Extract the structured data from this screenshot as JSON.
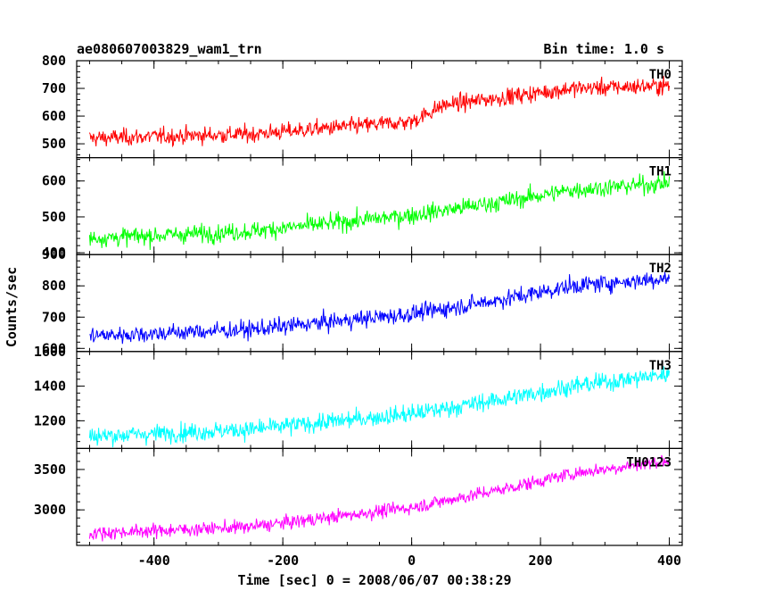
{
  "header": {
    "title": "ae080607003829_wam1_trn",
    "bin_time": "Bin time: 1.0 s"
  },
  "chart_data": {
    "type": "line",
    "title": "ae080607003829_wam1_trn",
    "subtitle": "Bin time: 1.0 s",
    "xlabel": "Time [sec] 0 = 2008/06/07 00:38:29",
    "ylabel": "Counts/sec",
    "xlim": [
      -520,
      420
    ],
    "x_ticks": [
      -400,
      -200,
      0,
      200,
      400
    ],
    "grid": false,
    "panels": [
      {
        "name": "TH0",
        "color": "#ff0000",
        "ylim": [
          450,
          800
        ],
        "y_ticks": [
          500,
          600,
          700,
          800
        ],
        "trend": [
          [
            -500,
            520
          ],
          [
            -250,
            535
          ],
          [
            0,
            580
          ],
          [
            50,
            640
          ],
          [
            150,
            670
          ],
          [
            250,
            700
          ],
          [
            400,
            710
          ]
        ],
        "noise_sd": 22
      },
      {
        "name": "TH1",
        "color": "#00ff00",
        "ylim": [
          395,
          665
        ],
        "y_ticks": [
          400,
          500,
          600
        ],
        "trend": [
          [
            -500,
            440
          ],
          [
            -250,
            460
          ],
          [
            0,
            505
          ],
          [
            150,
            545
          ],
          [
            250,
            575
          ],
          [
            400,
            595
          ]
        ],
        "noise_sd": 18
      },
      {
        "name": "TH2",
        "color": "#0000ff",
        "ylim": [
          590,
          900
        ],
        "y_ticks": [
          600,
          700,
          800,
          900
        ],
        "trend": [
          [
            -500,
            640
          ],
          [
            -250,
            660
          ],
          [
            0,
            710
          ],
          [
            150,
            760
          ],
          [
            250,
            800
          ],
          [
            400,
            825
          ]
        ],
        "noise_sd": 20
      },
      {
        "name": "TH3",
        "color": "#00ffff",
        "ylim": [
          1040,
          1600
        ],
        "y_ticks": [
          1200,
          1400,
          1600
        ],
        "trend": [
          [
            -500,
            1110
          ],
          [
            -250,
            1150
          ],
          [
            0,
            1240
          ],
          [
            150,
            1330
          ],
          [
            250,
            1400
          ],
          [
            400,
            1470
          ]
        ],
        "noise_sd": 38
      },
      {
        "name": "TH0123",
        "color": "#ff00ff",
        "ylim": [
          2560,
          3760
        ],
        "y_ticks": [
          3000,
          3500
        ],
        "trend": [
          [
            -500,
            2710
          ],
          [
            -250,
            2790
          ],
          [
            0,
            3030
          ],
          [
            150,
            3270
          ],
          [
            250,
            3450
          ],
          [
            400,
            3610
          ]
        ],
        "noise_sd": 60
      }
    ]
  }
}
